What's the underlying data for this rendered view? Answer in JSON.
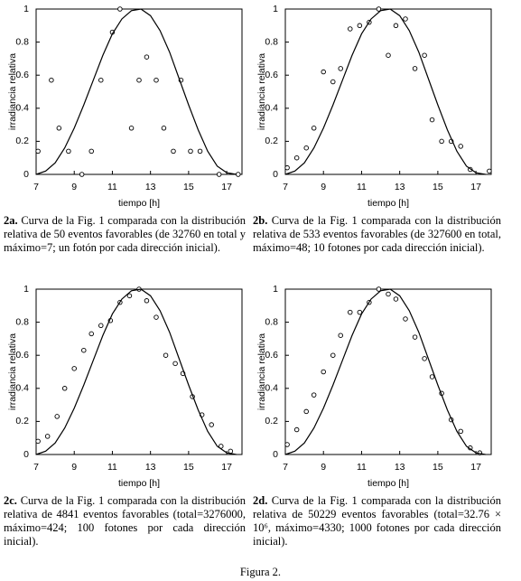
{
  "chart_data": [
    {
      "type": "scatter",
      "xlabel": "tiempo [h]",
      "ylabel": "irradiancia relativa",
      "xlim": [
        7,
        17.8
      ],
      "ylim": [
        0,
        1
      ],
      "xticks": [
        7,
        9,
        11,
        13,
        15,
        17
      ],
      "yticks": [
        0,
        0.2,
        0.4,
        0.6,
        0.8,
        1
      ],
      "series": [
        {
          "style": "markers",
          "color": "#000000",
          "x": [
            7.1,
            7.8,
            8.2,
            8.7,
            9.4,
            9.9,
            10.4,
            11.0,
            11.4,
            12.0,
            12.4,
            12.8,
            13.3,
            13.7,
            14.2,
            14.6,
            15.1,
            15.6,
            16.6,
            17.6
          ],
          "values": [
            0.14,
            0.57,
            0.28,
            0.14,
            0.0,
            0.14,
            0.57,
            0.86,
            1.0,
            0.28,
            0.57,
            0.71,
            0.57,
            0.28,
            0.14,
            0.57,
            0.14,
            0.14,
            0.0,
            0.0
          ]
        },
        {
          "style": "line",
          "color": "#000000",
          "x": [
            7,
            7.5,
            8,
            8.5,
            9,
            9.5,
            10,
            10.5,
            11,
            11.5,
            12,
            12.5,
            13,
            13.5,
            14,
            14.5,
            15,
            15.5,
            16,
            16.5,
            17,
            17.5
          ],
          "values": [
            0,
            0.02,
            0.07,
            0.16,
            0.28,
            0.42,
            0.57,
            0.72,
            0.85,
            0.94,
            0.99,
            1.0,
            0.96,
            0.87,
            0.74,
            0.58,
            0.42,
            0.27,
            0.14,
            0.05,
            0.01,
            0
          ]
        }
      ],
      "label": "2a.",
      "caption": "Curva de la Fig. 1 comparada con la distribución relativa de 50 eventos favorables (de 32760 en total y máximo=7; un fotón por cada dirección inicial)."
    },
    {
      "type": "scatter",
      "xlabel": "tiempo [h]",
      "ylabel": "irradiancia relativa",
      "xlim": [
        7,
        17.8
      ],
      "ylim": [
        0,
        1
      ],
      "xticks": [
        7,
        9,
        11,
        13,
        15,
        17
      ],
      "yticks": [
        0,
        0.2,
        0.4,
        0.6,
        0.8,
        1
      ],
      "series": [
        {
          "style": "markers",
          "color": "#000000",
          "x": [
            7.1,
            7.6,
            8.1,
            8.5,
            9.0,
            9.5,
            9.9,
            10.4,
            10.9,
            11.4,
            11.9,
            12.4,
            12.8,
            13.3,
            13.8,
            14.3,
            14.7,
            15.2,
            15.7,
            16.2,
            16.7,
            17.7
          ],
          "values": [
            0.04,
            0.1,
            0.16,
            0.28,
            0.62,
            0.56,
            0.64,
            0.88,
            0.9,
            0.92,
            1.0,
            0.72,
            0.9,
            0.94,
            0.64,
            0.72,
            0.33,
            0.2,
            0.2,
            0.17,
            0.03,
            0.02
          ]
        },
        {
          "style": "line",
          "color": "#000000",
          "x": [
            7,
            7.5,
            8,
            8.5,
            9,
            9.5,
            10,
            10.5,
            11,
            11.5,
            12,
            12.5,
            13,
            13.5,
            14,
            14.5,
            15,
            15.5,
            16,
            16.5,
            17,
            17.5
          ],
          "values": [
            0,
            0.02,
            0.07,
            0.16,
            0.28,
            0.42,
            0.57,
            0.72,
            0.85,
            0.94,
            0.99,
            1.0,
            0.96,
            0.87,
            0.74,
            0.58,
            0.42,
            0.27,
            0.14,
            0.05,
            0.01,
            0
          ]
        }
      ],
      "label": "2b.",
      "caption": "Curva de la Fig. 1 comparada con la distribución relativa de 533 eventos favorables (de 327600 en total, máximo=48; 10 fotones por cada dirección inicial)."
    },
    {
      "type": "scatter",
      "xlabel": "tiempo [h]",
      "ylabel": "irradiancia relativa",
      "xlim": [
        7,
        17.8
      ],
      "ylim": [
        0,
        1
      ],
      "xticks": [
        7,
        9,
        11,
        13,
        15,
        17
      ],
      "yticks": [
        0,
        0.2,
        0.4,
        0.6,
        0.8,
        1
      ],
      "series": [
        {
          "style": "markers",
          "color": "#000000",
          "x": [
            7.1,
            7.6,
            8.1,
            8.5,
            9.0,
            9.5,
            9.9,
            10.4,
            10.9,
            11.4,
            11.9,
            12.4,
            12.8,
            13.3,
            13.8,
            14.3,
            14.7,
            15.2,
            15.7,
            16.2,
            16.7,
            17.2
          ],
          "values": [
            0.08,
            0.11,
            0.23,
            0.4,
            0.52,
            0.63,
            0.73,
            0.78,
            0.81,
            0.92,
            0.96,
            1.0,
            0.93,
            0.83,
            0.6,
            0.55,
            0.49,
            0.35,
            0.24,
            0.18,
            0.05,
            0.02
          ]
        },
        {
          "style": "line",
          "color": "#000000",
          "x": [
            7,
            7.5,
            8,
            8.5,
            9,
            9.5,
            10,
            10.5,
            11,
            11.5,
            12,
            12.5,
            13,
            13.5,
            14,
            14.5,
            15,
            15.5,
            16,
            16.5,
            17,
            17.5
          ],
          "values": [
            0,
            0.02,
            0.07,
            0.16,
            0.28,
            0.42,
            0.57,
            0.72,
            0.85,
            0.94,
            0.99,
            1.0,
            0.96,
            0.87,
            0.74,
            0.58,
            0.42,
            0.27,
            0.14,
            0.05,
            0.01,
            0
          ]
        }
      ],
      "label": "2c.",
      "caption": "Curva de la Fig. 1 comparada con la distribución relativa de 4841 eventos favorables (total=3276000, máximo=424; 100 fotones por cada dirección inicial)."
    },
    {
      "type": "scatter",
      "xlabel": "tiempo [h]",
      "ylabel": "irradiancia relativa",
      "xlim": [
        7,
        17.8
      ],
      "ylim": [
        0,
        1
      ],
      "xticks": [
        7,
        9,
        11,
        13,
        15,
        17
      ],
      "yticks": [
        0,
        0.2,
        0.4,
        0.6,
        0.8,
        1
      ],
      "series": [
        {
          "style": "markers",
          "color": "#000000",
          "x": [
            7.1,
            7.6,
            8.1,
            8.5,
            9.0,
            9.5,
            9.9,
            10.4,
            10.9,
            11.4,
            11.9,
            12.4,
            12.8,
            13.3,
            13.8,
            14.3,
            14.7,
            15.2,
            15.7,
            16.2,
            16.7,
            17.2
          ],
          "values": [
            0.06,
            0.15,
            0.26,
            0.36,
            0.5,
            0.6,
            0.72,
            0.86,
            0.86,
            0.92,
            1.0,
            0.97,
            0.94,
            0.82,
            0.71,
            0.58,
            0.47,
            0.37,
            0.21,
            0.14,
            0.04,
            0.01
          ]
        },
        {
          "style": "line",
          "color": "#000000",
          "x": [
            7,
            7.5,
            8,
            8.5,
            9,
            9.5,
            10,
            10.5,
            11,
            11.5,
            12,
            12.5,
            13,
            13.5,
            14,
            14.5,
            15,
            15.5,
            16,
            16.5,
            17,
            17.5
          ],
          "values": [
            0,
            0.02,
            0.07,
            0.16,
            0.28,
            0.42,
            0.57,
            0.72,
            0.85,
            0.94,
            0.99,
            1.0,
            0.96,
            0.87,
            0.74,
            0.58,
            0.42,
            0.27,
            0.14,
            0.05,
            0.01,
            0
          ]
        }
      ],
      "label": "2d.",
      "caption": "Curva de la Fig. 1 comparada con la distribución relativa de 50229 eventos favorables (total=32.76 × 10⁶, máximo=4330; 1000 fotones por cada dirección inicial)."
    }
  ],
  "figure_caption": "Figura 2."
}
